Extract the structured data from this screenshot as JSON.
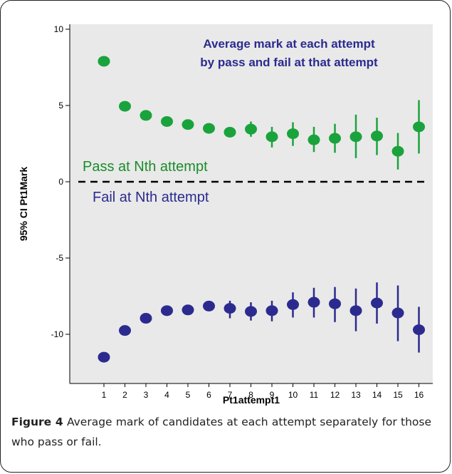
{
  "chart_data": {
    "type": "scatter",
    "title": "Average mark at each attempt\nby pass and fail at that attempt",
    "title_lines": [
      "Average mark at each attempt",
      "by pass and fail at that attempt"
    ],
    "xlabel": "Pt1attempt1",
    "ylabel": "95% CI Pt1Mark",
    "x": [
      1,
      2,
      3,
      4,
      5,
      6,
      7,
      8,
      9,
      10,
      11,
      12,
      13,
      14,
      15,
      16
    ],
    "x_ticks": [
      "1",
      "2",
      "3",
      "4",
      "5",
      "6",
      "7",
      "8",
      "9",
      "10",
      "11",
      "12",
      "13",
      "14",
      "15",
      "16"
    ],
    "y_ticks": [
      "10",
      "5",
      "0",
      "-5",
      "-10"
    ],
    "ylim": [
      -13.5,
      10.4
    ],
    "grid": false,
    "plot_background": "#e9e9e9",
    "reference_line": {
      "y": 0,
      "style": "dashed",
      "color": "#000000"
    },
    "series": [
      {
        "name": "Pass at Nth attempt",
        "color": "#1aa33c",
        "label_color": "#1a8c2a",
        "mean": [
          7.9,
          4.95,
          4.35,
          3.95,
          3.75,
          3.5,
          3.25,
          3.45,
          2.95,
          3.15,
          2.75,
          2.85,
          2.95,
          3.0,
          2.0,
          3.6
        ],
        "ci_low": [
          null,
          null,
          null,
          null,
          null,
          null,
          null,
          2.95,
          2.25,
          2.35,
          1.95,
          1.9,
          1.55,
          1.75,
          0.8,
          1.85
        ],
        "ci_high": [
          null,
          null,
          null,
          null,
          null,
          null,
          null,
          3.95,
          3.6,
          3.9,
          3.6,
          3.8,
          4.4,
          4.2,
          3.2,
          5.35
        ]
      },
      {
        "name": "Fail at Nth attempt",
        "color": "#2b2b8f",
        "label_color": "#2b2b8f",
        "mean": [
          -11.5,
          -9.75,
          -8.95,
          -8.45,
          -8.4,
          -8.15,
          -8.3,
          -8.5,
          -8.45,
          -8.05,
          -7.9,
          -8.0,
          -8.45,
          -7.95,
          -8.6,
          -9.7
        ],
        "ci_low": [
          null,
          null,
          null,
          null,
          null,
          null,
          -8.95,
          -9.1,
          -9.15,
          -8.9,
          -8.9,
          -9.2,
          -9.8,
          -9.3,
          -10.45,
          -11.2
        ],
        "ci_high": [
          null,
          null,
          null,
          null,
          null,
          null,
          -7.8,
          -7.9,
          -7.8,
          -7.25,
          -6.95,
          -6.9,
          -7.0,
          -6.6,
          -6.8,
          -8.2
        ]
      }
    ]
  },
  "caption": {
    "label": "Figure 4",
    "text": "Average mark of candidates at each attempt separately for those who pass or fail."
  }
}
